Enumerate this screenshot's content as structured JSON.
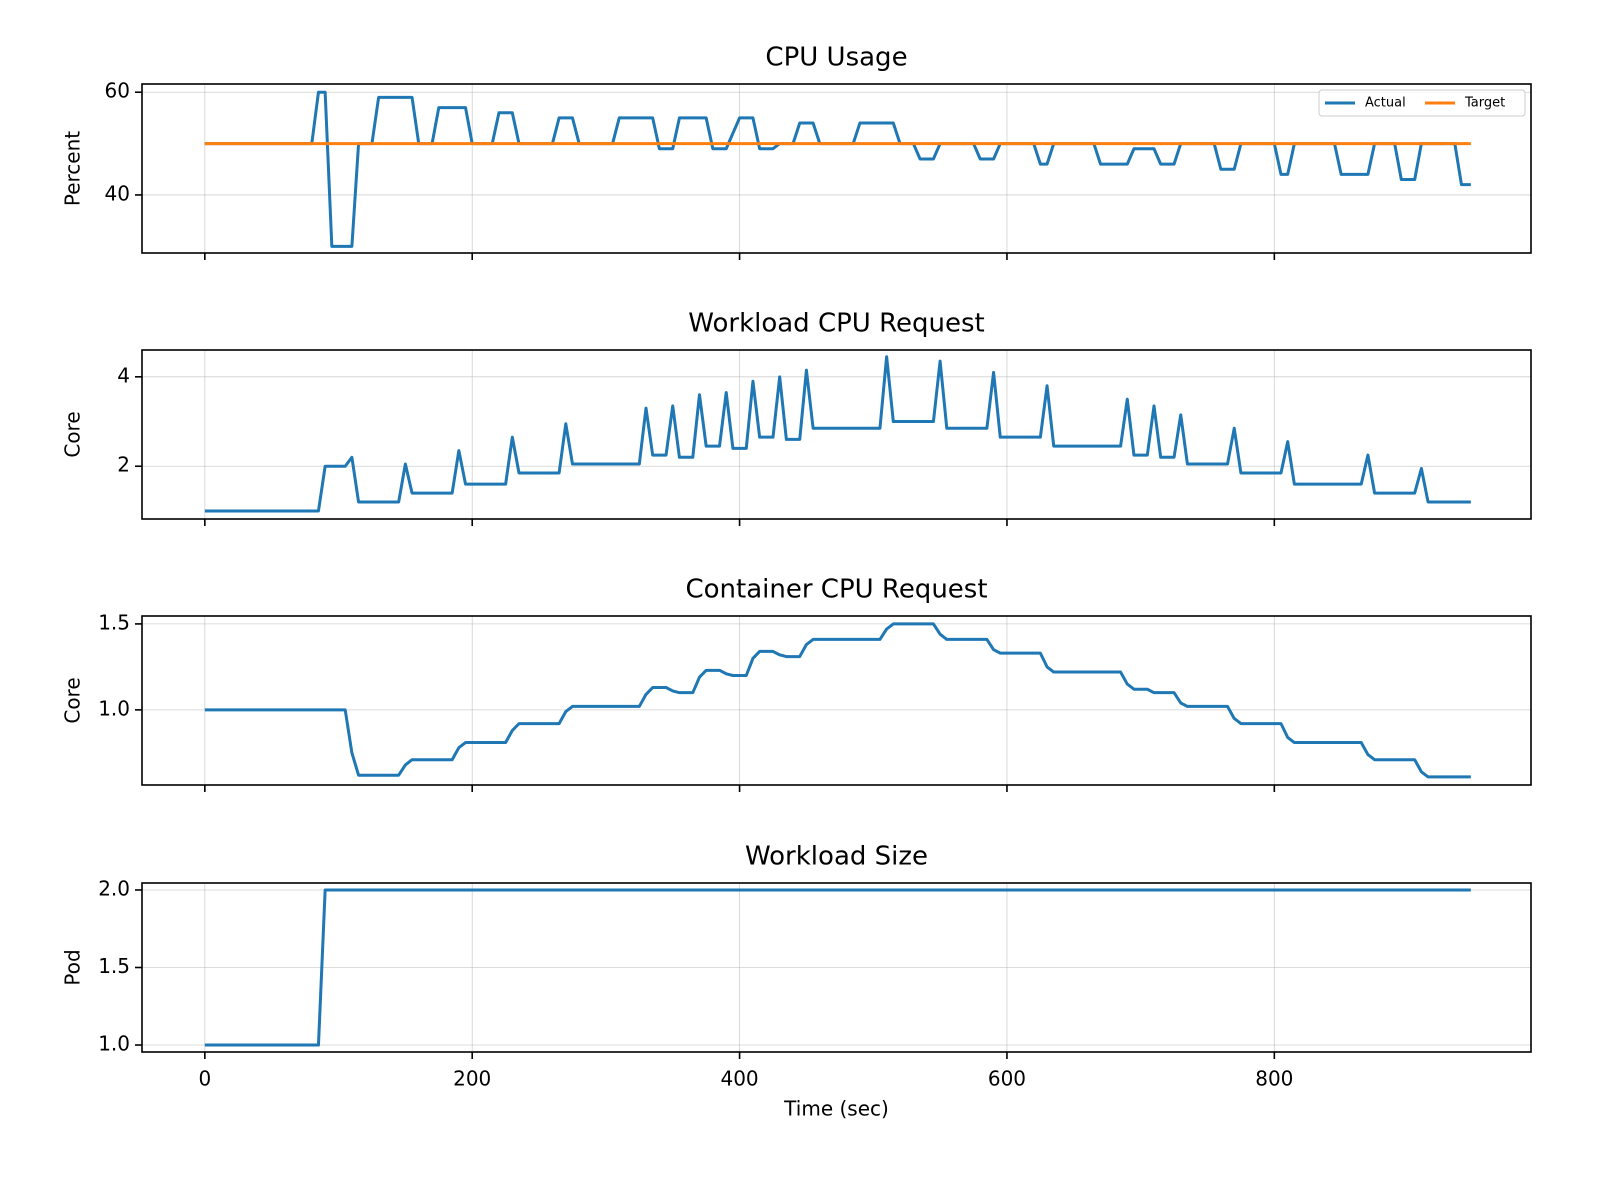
{
  "chart_data": [
    {
      "type": "line",
      "title": "CPU Usage",
      "ylabel": "Percent",
      "grid": true,
      "legend": "upper right",
      "xlim": [
        -47,
        992
      ],
      "xticks": [
        0,
        200,
        400,
        600,
        800
      ],
      "ylim": [
        28.7,
        61.6
      ],
      "yticks": [
        40,
        60
      ],
      "x": [
        0,
        80,
        85,
        90,
        95,
        110,
        115,
        125,
        130,
        155,
        160,
        170,
        175,
        195,
        200,
        215,
        220,
        230,
        235,
        260,
        265,
        275,
        280,
        305,
        310,
        335,
        340,
        350,
        355,
        375,
        380,
        390,
        400,
        410,
        415,
        425,
        430,
        440,
        445,
        455,
        460,
        485,
        490,
        515,
        520,
        530,
        535,
        545,
        550,
        575,
        580,
        590,
        595,
        620,
        625,
        630,
        635,
        665,
        670,
        690,
        695,
        710,
        715,
        725,
        730,
        755,
        760,
        770,
        775,
        800,
        805,
        810,
        815,
        845,
        850,
        870,
        875,
        890,
        895,
        905,
        910,
        935,
        940,
        947
      ],
      "series": [
        {
          "name": "Actual",
          "color": "#1f77b4",
          "values": [
            50,
            50,
            60,
            60,
            30,
            30,
            50,
            50,
            59,
            59,
            50,
            50,
            57,
            57,
            50,
            50,
            56,
            56,
            50,
            50,
            55,
            55,
            50,
            50,
            55,
            55,
            49,
            49,
            55,
            55,
            49,
            49,
            55,
            55,
            49,
            49,
            50,
            50,
            54,
            54,
            50,
            50,
            54,
            54,
            50,
            50,
            47,
            47,
            50,
            50,
            47,
            47,
            50,
            50,
            46,
            46,
            50,
            50,
            46,
            46,
            49,
            49,
            46,
            46,
            50,
            50,
            45,
            45,
            50,
            50,
            44,
            44,
            50,
            50,
            44,
            44,
            50,
            50,
            43,
            43,
            50,
            50,
            42,
            42
          ]
        },
        {
          "name": "Target",
          "color": "#ff7f0e",
          "values": [
            50,
            50,
            50,
            50,
            50,
            50,
            50,
            50,
            50,
            50,
            50,
            50,
            50,
            50,
            50,
            50,
            50,
            50,
            50,
            50,
            50,
            50,
            50,
            50,
            50,
            50,
            50,
            50,
            50,
            50,
            50,
            50,
            50,
            50,
            50,
            50,
            50,
            50,
            50,
            50,
            50,
            50,
            50,
            50,
            50,
            50,
            50,
            50,
            50,
            50,
            50,
            50,
            50,
            50,
            50,
            50,
            50,
            50,
            50,
            50,
            50,
            50,
            50,
            50,
            50,
            50,
            50,
            50,
            50,
            50,
            50,
            50,
            50,
            50,
            50,
            50,
            50,
            50,
            50,
            50,
            50,
            50,
            50,
            50
          ]
        }
      ]
    },
    {
      "type": "line",
      "title": "Workload CPU Request",
      "ylabel": "Core",
      "grid": true,
      "xlim": [
        -47,
        992
      ],
      "xticks": [
        0,
        200,
        400,
        600,
        800
      ],
      "ylim": [
        0.82,
        4.6
      ],
      "yticks": [
        2,
        4
      ],
      "x": [
        0,
        85,
        90,
        105,
        110,
        115,
        145,
        150,
        155,
        185,
        190,
        195,
        225,
        230,
        235,
        265,
        270,
        275,
        325,
        330,
        335,
        345,
        350,
        355,
        365,
        370,
        375,
        385,
        390,
        395,
        405,
        410,
        415,
        425,
        430,
        435,
        445,
        450,
        455,
        505,
        510,
        515,
        545,
        550,
        555,
        585,
        590,
        595,
        625,
        630,
        635,
        685,
        690,
        695,
        705,
        710,
        715,
        725,
        730,
        735,
        765,
        770,
        775,
        805,
        810,
        815,
        865,
        870,
        875,
        905,
        910,
        915,
        947
      ],
      "series": [
        {
          "name": "Actual",
          "color": "#1f77b4",
          "values": [
            1,
            1,
            2,
            2,
            2.2,
            1.2,
            1.2,
            2.05,
            1.4,
            1.4,
            2.35,
            1.6,
            1.6,
            2.65,
            1.85,
            1.85,
            2.95,
            2.05,
            2.05,
            3.3,
            2.25,
            2.25,
            3.35,
            2.2,
            2.2,
            3.6,
            2.45,
            2.45,
            3.65,
            2.4,
            2.4,
            3.9,
            2.65,
            2.65,
            4.0,
            2.6,
            2.6,
            4.15,
            2.85,
            2.85,
            4.45,
            3.0,
            3.0,
            4.35,
            2.85,
            2.85,
            4.1,
            2.65,
            2.65,
            3.8,
            2.45,
            2.45,
            3.5,
            2.25,
            2.25,
            3.35,
            2.2,
            2.2,
            3.15,
            2.05,
            2.05,
            2.85,
            1.85,
            1.85,
            2.55,
            1.6,
            1.6,
            2.25,
            1.4,
            1.4,
            1.95,
            1.2,
            1.2
          ]
        }
      ]
    },
    {
      "type": "line",
      "title": "Container CPU Request",
      "ylabel": "Core",
      "grid": true,
      "xlim": [
        -47,
        992
      ],
      "xticks": [
        0,
        200,
        400,
        600,
        800
      ],
      "ylim": [
        0.563,
        1.546
      ],
      "yticks": [
        {
          "value": 1,
          "label": "1.0"
        },
        {
          "value": 1.5,
          "label": "1.5"
        }
      ],
      "x": [
        0,
        105,
        110,
        115,
        145,
        150,
        155,
        185,
        190,
        195,
        225,
        230,
        235,
        265,
        270,
        275,
        325,
        330,
        335,
        345,
        350,
        355,
        365,
        370,
        375,
        385,
        390,
        395,
        405,
        410,
        415,
        425,
        430,
        435,
        445,
        450,
        455,
        505,
        510,
        515,
        545,
        550,
        555,
        585,
        590,
        595,
        625,
        630,
        635,
        685,
        690,
        695,
        705,
        710,
        715,
        725,
        730,
        735,
        765,
        770,
        775,
        805,
        810,
        815,
        865,
        870,
        875,
        905,
        910,
        915,
        947
      ],
      "series": [
        {
          "name": "Actual",
          "color": "#1f77b4",
          "values": [
            1,
            1,
            0.75,
            0.62,
            0.62,
            0.68,
            0.71,
            0.71,
            0.78,
            0.81,
            0.81,
            0.88,
            0.92,
            0.92,
            0.99,
            1.02,
            1.02,
            1.09,
            1.13,
            1.13,
            1.11,
            1.1,
            1.1,
            1.19,
            1.23,
            1.23,
            1.21,
            1.2,
            1.2,
            1.3,
            1.34,
            1.34,
            1.32,
            1.31,
            1.31,
            1.38,
            1.41,
            1.41,
            1.47,
            1.5,
            1.5,
            1.44,
            1.41,
            1.41,
            1.35,
            1.33,
            1.33,
            1.25,
            1.22,
            1.22,
            1.15,
            1.12,
            1.12,
            1.1,
            1.1,
            1.1,
            1.04,
            1.02,
            1.02,
            0.95,
            0.92,
            0.92,
            0.84,
            0.81,
            0.81,
            0.74,
            0.71,
            0.71,
            0.64,
            0.61,
            0.61
          ]
        }
      ]
    },
    {
      "type": "line",
      "title": "Workload Size",
      "ylabel": "Pod",
      "xlabel": "Time (sec)",
      "grid": true,
      "xlim": [
        -47,
        992
      ],
      "xticks": [
        0,
        200,
        400,
        600,
        800
      ],
      "ylim": [
        0.955,
        2.045
      ],
      "yticks": [
        {
          "value": 1,
          "label": "1.0"
        },
        {
          "value": 1.5,
          "label": "1.5"
        },
        {
          "value": 2,
          "label": "2.0"
        }
      ],
      "x": [
        0,
        85,
        90,
        947
      ],
      "series": [
        {
          "name": "Actual",
          "color": "#1f77b4",
          "values": [
            1,
            1,
            2,
            2
          ]
        }
      ]
    }
  ]
}
